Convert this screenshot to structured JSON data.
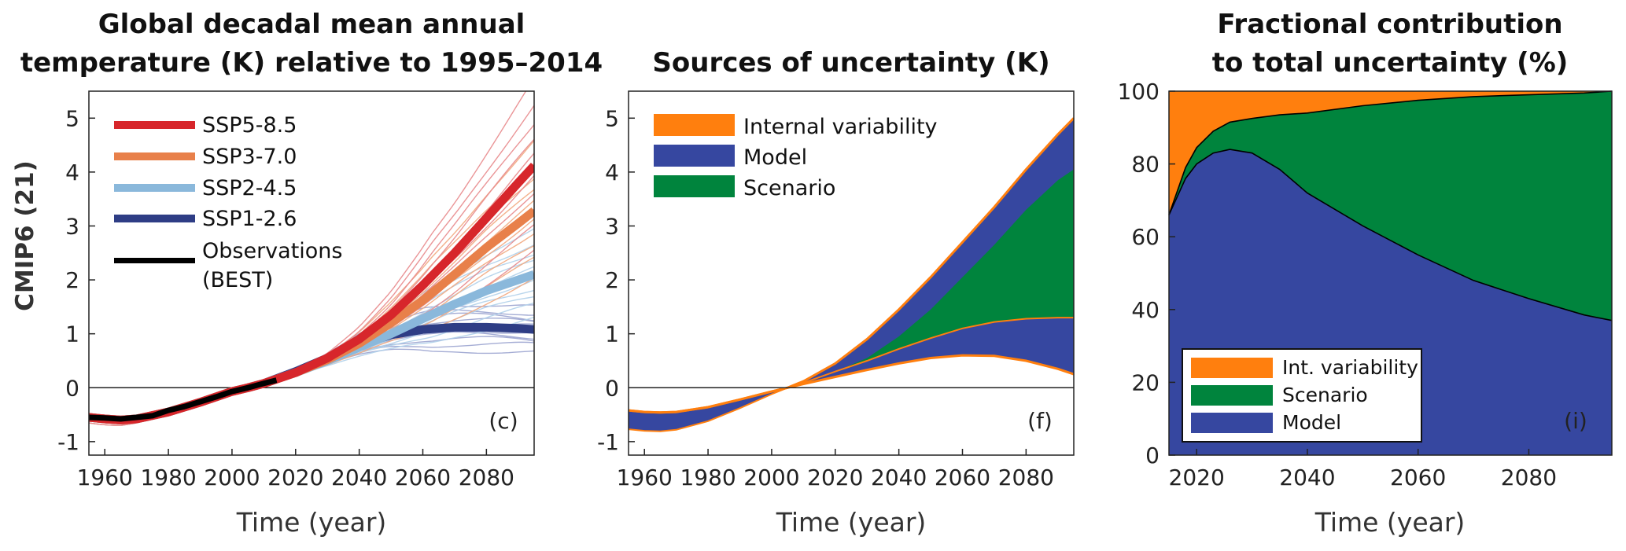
{
  "panels": {
    "c": {
      "title_line1": "Global decadal mean annual",
      "title_line2": "temperature (K) relative to 1995–2014",
      "ylabel": "CMIP6 (21)",
      "xlabel": "Time (year)",
      "panel_label": "(c)",
      "xticks": [
        "1960",
        "1980",
        "2000",
        "2020",
        "2040",
        "2060",
        "2080"
      ],
      "yticks": [
        "-1",
        "0",
        "1",
        "2",
        "3",
        "4",
        "5"
      ],
      "legend": [
        {
          "label": "SSP5-8.5",
          "color": "#d7262b"
        },
        {
          "label": "SSP3-7.0",
          "color": "#e8804a"
        },
        {
          "label": "SSP2-4.5",
          "color": "#8ab8db"
        },
        {
          "label": "SSP1-2.6",
          "color": "#2e3d85"
        },
        {
          "label": "Observations",
          "color": "#000000"
        },
        {
          "label": "(BEST)",
          "color": "#000000"
        }
      ]
    },
    "f": {
      "title": "Sources of uncertainty (K)",
      "xlabel": "Time (year)",
      "panel_label": "(f)",
      "xticks": [
        "1960",
        "1980",
        "2000",
        "2020",
        "2040",
        "2060",
        "2080"
      ],
      "yticks": [
        "-1",
        "0",
        "1",
        "2",
        "3",
        "4",
        "5"
      ],
      "legend": [
        {
          "label": "Internal variability",
          "color": "#ff7f0e"
        },
        {
          "label": "Model",
          "color": "#3647a0"
        },
        {
          "label": "Scenario",
          "color": "#00843d"
        }
      ]
    },
    "i": {
      "title_line1": "Fractional contribution",
      "title_line2": "to total uncertainty (%)",
      "xlabel": "Time (year)",
      "panel_label": "(i)",
      "xticks": [
        "2020",
        "2040",
        "2060",
        "2080"
      ],
      "yticks": [
        "0",
        "20",
        "40",
        "60",
        "80",
        "100"
      ],
      "legend": [
        {
          "label": "Int. variability",
          "color": "#ff7f0e"
        },
        {
          "label": "Scenario",
          "color": "#00843d"
        },
        {
          "label": "Model",
          "color": "#3647a0"
        }
      ]
    }
  },
  "chart_data": [
    {
      "type": "line",
      "title": "Global decadal mean annual temperature (K) relative to 1995–2014",
      "xlabel": "Time (year)",
      "ylabel": "CMIP6 (21)",
      "xlim": [
        1955,
        2095
      ],
      "ylim": [
        -1.25,
        5.5
      ],
      "x": [
        1955,
        1960,
        1965,
        1970,
        1980,
        1990,
        2000,
        2005,
        2010,
        2020,
        2030,
        2040,
        2050,
        2060,
        2070,
        2080,
        2090,
        2095
      ],
      "series": [
        {
          "name": "SSP5-8.5",
          "values": [
            -0.55,
            -0.58,
            -0.6,
            -0.58,
            -0.45,
            -0.27,
            -0.07,
            0.0,
            0.08,
            0.28,
            0.55,
            0.9,
            1.35,
            1.9,
            2.5,
            3.15,
            3.8,
            4.12
          ]
        },
        {
          "name": "SSP3-7.0",
          "values": [
            -0.55,
            -0.58,
            -0.6,
            -0.58,
            -0.45,
            -0.27,
            -0.07,
            0.0,
            0.08,
            0.28,
            0.52,
            0.82,
            1.2,
            1.62,
            2.1,
            2.6,
            3.05,
            3.28
          ]
        },
        {
          "name": "SSP2-4.5",
          "values": [
            -0.55,
            -0.58,
            -0.6,
            -0.58,
            -0.45,
            -0.27,
            -0.07,
            0.0,
            0.08,
            0.28,
            0.5,
            0.75,
            1.0,
            1.28,
            1.55,
            1.8,
            2.0,
            2.1
          ]
        },
        {
          "name": "SSP1-2.6",
          "values": [
            -0.55,
            -0.58,
            -0.6,
            -0.58,
            -0.45,
            -0.27,
            -0.07,
            0.0,
            0.08,
            0.3,
            0.55,
            0.8,
            0.98,
            1.08,
            1.12,
            1.12,
            1.1,
            1.08
          ]
        },
        {
          "name": "Observations (BEST)",
          "x": [
            1955,
            1960,
            1965,
            1970,
            1975,
            1980,
            1985,
            1990,
            1995,
            2000,
            2005,
            2010,
            2014
          ],
          "values": [
            -0.55,
            -0.56,
            -0.58,
            -0.55,
            -0.52,
            -0.42,
            -0.35,
            -0.26,
            -0.17,
            -0.07,
            0.0,
            0.08,
            0.14
          ]
        }
      ]
    },
    {
      "type": "area",
      "title": "Sources of uncertainty (K)",
      "xlabel": "Time (year)",
      "xlim": [
        1955,
        2095
      ],
      "ylim": [
        -1.25,
        5.5
      ],
      "x": [
        1955,
        1960,
        1965,
        1970,
        1980,
        1990,
        2000,
        2005,
        2010,
        2020,
        2030,
        2040,
        2050,
        2060,
        2070,
        2080,
        2090,
        2095
      ],
      "series": [
        {
          "name": "Internal variability",
          "values": [
            -0.42,
            -0.45,
            -0.46,
            -0.45,
            -0.36,
            -0.22,
            -0.07,
            0.0,
            0.07,
            0.2,
            0.33,
            0.45,
            0.55,
            0.6,
            0.59,
            0.5,
            0.35,
            0.25
          ]
        },
        {
          "name": "Model",
          "values": [
            -0.77,
            -0.8,
            -0.81,
            -0.78,
            -0.62,
            -0.38,
            -0.12,
            0.0,
            0.09,
            0.3,
            0.5,
            0.72,
            0.92,
            1.1,
            1.22,
            1.28,
            1.3,
            1.3
          ]
        },
        {
          "name": "Scenario",
          "values": [
            -0.77,
            -0.8,
            -0.81,
            -0.78,
            -0.62,
            -0.38,
            -0.12,
            0.0,
            0.09,
            0.3,
            0.55,
            0.95,
            1.45,
            2.05,
            2.65,
            3.3,
            3.85,
            4.05
          ]
        },
        {
          "name": "Total",
          "values": [
            -0.42,
            -0.45,
            -0.46,
            -0.45,
            -0.36,
            -0.22,
            -0.07,
            0.0,
            0.12,
            0.45,
            0.9,
            1.45,
            2.05,
            2.7,
            3.35,
            4.05,
            4.7,
            5.0
          ]
        }
      ]
    },
    {
      "type": "area",
      "title": "Fractional contribution to total uncertainty (%)",
      "xlabel": "Time (year)",
      "xlim": [
        2015,
        2095
      ],
      "ylim": [
        0,
        100
      ],
      "x": [
        2015,
        2018,
        2020,
        2023,
        2026,
        2030,
        2035,
        2040,
        2050,
        2060,
        2070,
        2080,
        2090,
        2095
      ],
      "series": [
        {
          "name": "Model",
          "values": [
            66,
            76,
            80,
            83,
            84,
            83,
            78.5,
            72,
            63,
            55,
            48,
            43,
            38.5,
            37
          ]
        },
        {
          "name": "Scenario",
          "values": [
            0,
            3,
            4.5,
            6,
            7.5,
            9.5,
            15,
            22,
            33,
            42.5,
            50.5,
            56,
            61,
            63
          ]
        },
        {
          "name": "Int. variability",
          "values": [
            34,
            21,
            15.5,
            11,
            8.5,
            7.5,
            6.5,
            6,
            4,
            2.5,
            1.5,
            1,
            0.5,
            0
          ]
        }
      ]
    }
  ]
}
